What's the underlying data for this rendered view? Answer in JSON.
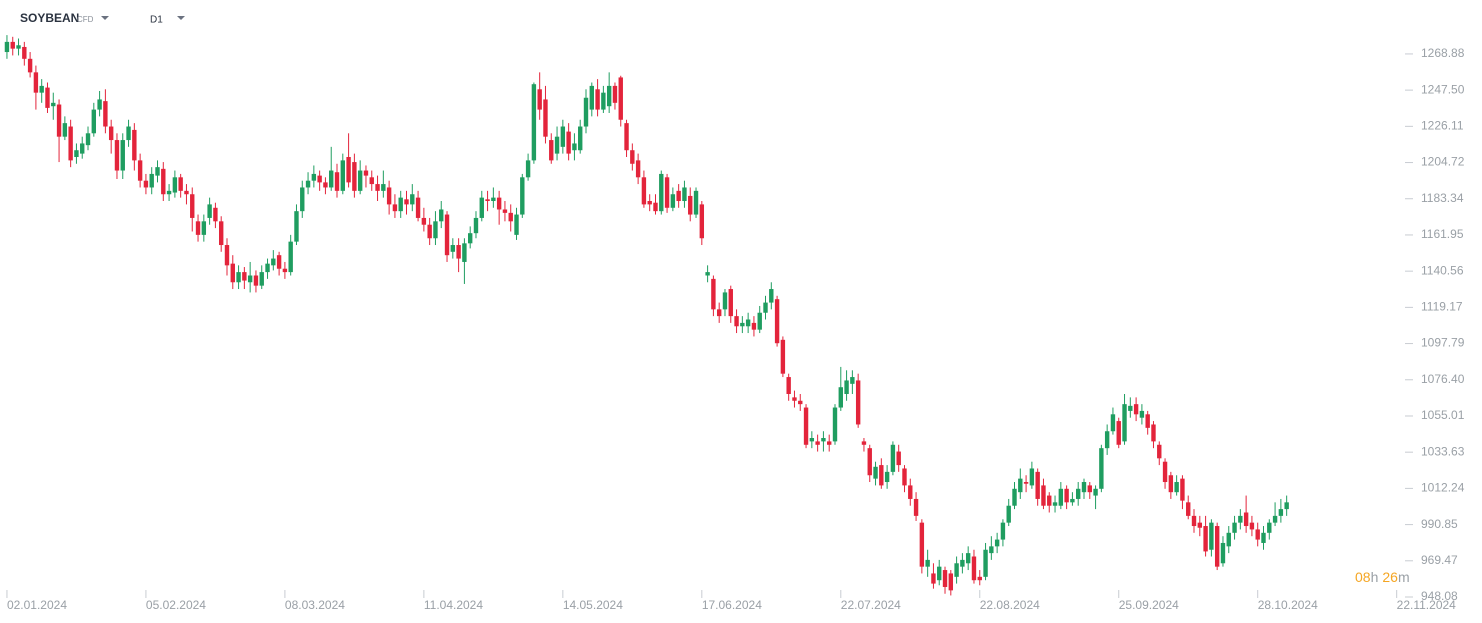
{
  "header": {
    "symbol": "SOYBEAN",
    "symbol_type": "CFD",
    "timeframe": "D1"
  },
  "countdown": {
    "hours": "08",
    "hours_unit": "h",
    "minutes": "26",
    "minutes_unit": "m"
  },
  "chart_data": {
    "type": "candlestick",
    "up_color": "#1f9d60",
    "down_color": "#e3243b",
    "xlim": [
      -1.2,
      242.3
    ],
    "ylim": [
      948.08,
      1284.2
    ],
    "xticks": [
      {
        "value": 0,
        "label": "02.01.2024"
      },
      {
        "value": 24,
        "label": "05.02.2024"
      },
      {
        "value": 48,
        "label": "08.03.2024"
      },
      {
        "value": 72,
        "label": "11.04.2024"
      },
      {
        "value": 96,
        "label": "14.05.2024"
      },
      {
        "value": 120,
        "label": "17.06.2024"
      },
      {
        "value": 144,
        "label": "22.07.2024"
      },
      {
        "value": 168,
        "label": "22.08.2024"
      },
      {
        "value": 192,
        "label": "25.09.2024"
      },
      {
        "value": 216,
        "label": "28.10.2024"
      },
      {
        "value": 240,
        "label": "22.11.2024"
      }
    ],
    "yticks": [
      1268.88,
      {
        "value": 1247.5,
        "label": "1247.50"
      },
      1226.11,
      1204.72,
      1183.34,
      1161.95,
      1140.56,
      1119.17,
      1097.79,
      {
        "value": 1076.4,
        "label": "1076.40"
      },
      1055.01,
      1033.63,
      1012.24,
      990.85,
      969.47,
      948.08
    ],
    "open": [
      1270,
      1276,
      1272,
      1273,
      1266,
      1258,
      1246,
      1249,
      1238,
      1239,
      1220,
      1226,
      1208,
      1210,
      1215,
      1222,
      1236,
      1241,
      1226,
      1218,
      1200,
      1218,
      1224,
      1206,
      1194,
      1190,
      1197,
      1201,
      1186,
      1187,
      1196,
      1188,
      1186,
      1170,
      1162,
      1172,
      1178,
      1170,
      1156,
      1145,
      1134,
      1140,
      1134,
      1138,
      1132,
      1140,
      1144,
      1150,
      1142,
      1140,
      1158,
      1176,
      1190,
      1194,
      1197,
      1193,
      1190,
      1199,
      1188,
      1208,
      1205,
      1188,
      1200,
      1196,
      1192,
      1188,
      1190,
      1180,
      1176,
      1183,
      1180,
      1184,
      1172,
      1168,
      1160,
      1170,
      1174,
      1152,
      1156,
      1146,
      1157,
      1163,
      1172,
      1183,
      1182,
      1184,
      1177,
      1175,
      1162,
      1174,
      1196,
      1206,
      1248,
      1242,
      1218,
      1210,
      1214,
      1223,
      1212,
      1212,
      1226,
      1236,
      1248,
      1236,
      1238,
      1250,
      1255,
      1228,
      1212,
      1206,
      1196,
      1182,
      1181,
      1176,
      1196,
      1178,
      1188,
      1182,
      1185,
      1174,
      1180,
      1138,
      1136,
      1118,
      1118,
      1130,
      1114,
      1108,
      1108,
      1110,
      1106,
      1116,
      1122,
      1124,
      1100,
      1078,
      1066,
      1064,
      1060,
      1040,
      1040,
      1040,
      1040,
      1040,
      1060,
      1068,
      1074,
      1076,
      1040,
      1036,
      1018,
      1026,
      1016,
      1022,
      1034,
      1024,
      1014,
      1006,
      992,
      966,
      962,
      958,
      964,
      962,
      960,
      966,
      968,
      972,
      960,
      960,
      974,
      978,
      982,
      992,
      1002,
      1010,
      1016,
      1014,
      1022,
      1014,
      1008,
      1002,
      1002,
      1012,
      1004,
      1006,
      1010,
      1014,
      1008,
      1012,
      1036,
      1046,
      1052,
      1040,
      1058,
      1062,
      1054,
      1056,
      1050,
      1038,
      1028,
      1020,
      1010,
      1018,
      1004,
      996,
      992,
      990,
      976,
      990,
      968,
      978,
      986,
      992,
      998,
      992,
      988,
      980,
      986,
      992,
      996,
      1000
    ],
    "high": [
      1280,
      1279,
      1278,
      1276,
      1270,
      1262,
      1254,
      1252,
      1246,
      1242,
      1232,
      1230,
      1216,
      1220,
      1226,
      1240,
      1247,
      1248,
      1230,
      1222,
      1222,
      1230,
      1228,
      1210,
      1198,
      1202,
      1206,
      1205,
      1192,
      1200,
      1198,
      1192,
      1190,
      1174,
      1174,
      1184,
      1181,
      1173,
      1160,
      1150,
      1144,
      1143,
      1146,
      1141,
      1144,
      1148,
      1153,
      1152,
      1146,
      1162,
      1180,
      1194,
      1199,
      1203,
      1200,
      1196,
      1214,
      1204,
      1210,
      1222,
      1210,
      1206,
      1203,
      1200,
      1197,
      1200,
      1194,
      1186,
      1188,
      1188,
      1192,
      1188,
      1178,
      1172,
      1176,
      1182,
      1176,
      1160,
      1160,
      1160,
      1167,
      1176,
      1188,
      1188,
      1190,
      1188,
      1182,
      1180,
      1178,
      1198,
      1210,
      1252,
      1258,
      1250,
      1222,
      1226,
      1230,
      1228,
      1222,
      1230,
      1248,
      1252,
      1254,
      1250,
      1258,
      1252,
      1256,
      1230,
      1216,
      1210,
      1200,
      1186,
      1186,
      1200,
      1198,
      1190,
      1192,
      1194,
      1190,
      1190,
      1182,
      1144,
      1138,
      1122,
      1130,
      1132,
      1118,
      1114,
      1116,
      1114,
      1120,
      1126,
      1134,
      1126,
      1102,
      1080,
      1070,
      1068,
      1062,
      1046,
      1044,
      1046,
      1044,
      1062,
      1084,
      1082,
      1082,
      1080,
      1042,
      1038,
      1028,
      1030,
      1026,
      1040,
      1038,
      1026,
      1018,
      1010,
      994,
      976,
      968,
      970,
      966,
      964,
      972,
      974,
      978,
      976,
      964,
      980,
      984,
      986,
      994,
      1006,
      1016,
      1024,
      1020,
      1028,
      1024,
      1018,
      1010,
      1008,
      1016,
      1014,
      1010,
      1016,
      1018,
      1016,
      1014,
      1038,
      1050,
      1060,
      1054,
      1068,
      1066,
      1066,
      1062,
      1058,
      1052,
      1040,
      1030,
      1022,
      1020,
      1020,
      1008,
      1000,
      996,
      996,
      994,
      992,
      984,
      990,
      996,
      1000,
      1008,
      996,
      992,
      990,
      994,
      1004,
      1006,
      1008
    ],
    "low": [
      1266,
      1268,
      1268,
      1262,
      1255,
      1236,
      1240,
      1234,
      1230,
      1205,
      1218,
      1202,
      1204,
      1207,
      1212,
      1220,
      1232,
      1222,
      1210,
      1195,
      1195,
      1214,
      1200,
      1190,
      1186,
      1186,
      1193,
      1182,
      1182,
      1184,
      1184,
      1180,
      1164,
      1158,
      1158,
      1168,
      1166,
      1152,
      1138,
      1130,
      1130,
      1130,
      1128,
      1128,
      1130,
      1136,
      1141,
      1138,
      1136,
      1138,
      1156,
      1172,
      1186,
      1190,
      1188,
      1186,
      1188,
      1184,
      1186,
      1190,
      1184,
      1186,
      1190,
      1188,
      1182,
      1184,
      1174,
      1172,
      1172,
      1174,
      1176,
      1170,
      1164,
      1156,
      1156,
      1166,
      1146,
      1148,
      1140,
      1133,
      1154,
      1160,
      1170,
      1176,
      1178,
      1168,
      1170,
      1164,
      1159,
      1172,
      1194,
      1204,
      1230,
      1216,
      1204,
      1206,
      1210,
      1206,
      1206,
      1210,
      1222,
      1232,
      1232,
      1234,
      1234,
      1236,
      1226,
      1208,
      1200,
      1192,
      1178,
      1176,
      1174,
      1174,
      1175,
      1176,
      1178,
      1178,
      1170,
      1172,
      1156,
      1134,
      1114,
      1110,
      1114,
      1110,
      1104,
      1104,
      1104,
      1102,
      1104,
      1112,
      1118,
      1096,
      1078,
      1064,
      1060,
      1058,
      1036,
      1036,
      1034,
      1034,
      1034,
      1038,
      1058,
      1064,
      1068,
      1048,
      1034,
      1016,
      1014,
      1012,
      1012,
      1020,
      1022,
      1010,
      1002,
      993,
      962,
      960,
      953,
      955,
      950,
      949,
      956,
      962,
      964,
      956,
      955,
      958,
      970,
      974,
      978,
      990,
      1000,
      1006,
      1010,
      1012,
      1002,
      1000,
      998,
      998,
      1000,
      1000,
      1002,
      1002,
      1006,
      1006,
      1000,
      1010,
      1032,
      1044,
      1036,
      1038,
      1054,
      1052,
      1050,
      1044,
      1036,
      1026,
      1012,
      1006,
      1008,
      1000,
      994,
      986,
      984,
      972,
      972,
      964,
      966,
      974,
      982,
      988,
      986,
      984,
      978,
      976,
      982,
      990,
      992,
      996
    ],
    "close": [
      1276,
      1272,
      1274,
      1266,
      1258,
      1246,
      1250,
      1237,
      1240,
      1220,
      1228,
      1206,
      1212,
      1216,
      1222,
      1236,
      1242,
      1226,
      1218,
      1200,
      1218,
      1226,
      1206,
      1194,
      1190,
      1198,
      1202,
      1186,
      1188,
      1196,
      1188,
      1186,
      1172,
      1162,
      1170,
      1180,
      1170,
      1156,
      1144,
      1134,
      1140,
      1135,
      1138,
      1132,
      1140,
      1145,
      1148,
      1142,
      1140,
      1158,
      1176,
      1190,
      1194,
      1198,
      1193,
      1190,
      1200,
      1188,
      1206,
      1193,
      1188,
      1200,
      1197,
      1192,
      1188,
      1192,
      1180,
      1176,
      1184,
      1180,
      1186,
      1172,
      1168,
      1160,
      1170,
      1177,
      1150,
      1156,
      1148,
      1157,
      1163,
      1172,
      1184,
      1182,
      1184,
      1177,
      1175,
      1170,
      1174,
      1196,
      1206,
      1251,
      1236,
      1220,
      1206,
      1220,
      1226,
      1210,
      1216,
      1226,
      1243,
      1250,
      1236,
      1246,
      1250,
      1240,
      1230,
      1212,
      1204,
      1196,
      1180,
      1180,
      1176,
      1198,
      1178,
      1186,
      1182,
      1190,
      1174,
      1188,
      1160,
      1140,
      1118,
      1114,
      1128,
      1114,
      1108,
      1110,
      1112,
      1106,
      1116,
      1122,
      1130,
      1098,
      1080,
      1068,
      1064,
      1062,
      1038,
      1042,
      1038,
      1042,
      1038,
      1060,
      1072,
      1076,
      1078,
      1050,
      1038,
      1020,
      1025,
      1014,
      1022,
      1038,
      1026,
      1014,
      1006,
      996,
      966,
      970,
      956,
      966,
      954,
      952,
      968,
      970,
      974,
      958,
      958,
      976,
      978,
      982,
      992,
      1002,
      1012,
      1018,
      1015,
      1024,
      1006,
      1002,
      1002,
      1004,
      1012,
      1004,
      1006,
      1012,
      1016,
      1010,
      1012,
      1036,
      1046,
      1056,
      1038,
      1062,
      1061,
      1056,
      1058,
      1048,
      1040,
      1030,
      1016,
      1010,
      1016,
      1005,
      996,
      990,
      989,
      975,
      992,
      966,
      980,
      986,
      992,
      996,
      990,
      988,
      982,
      986,
      992,
      996,
      1000,
      1004
    ]
  }
}
